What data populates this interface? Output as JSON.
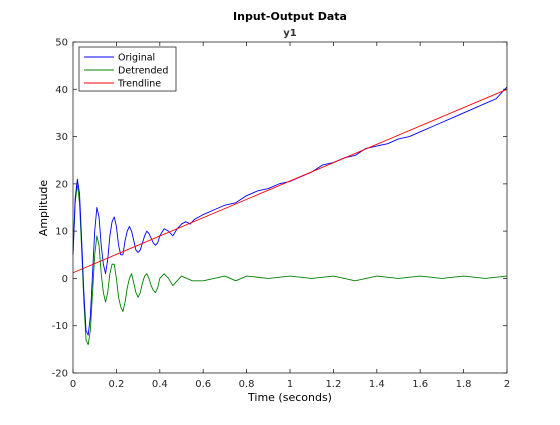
{
  "chart_data": {
    "type": "line",
    "title": "Input-Output Data",
    "subtitle": "y1",
    "xlabel": "Time (seconds)",
    "ylabel": "Amplitude",
    "xlim": [
      0,
      2
    ],
    "ylim": [
      -20,
      50
    ],
    "xticks": [
      0,
      0.2,
      0.4,
      0.6,
      0.8,
      1,
      1.2,
      1.4,
      1.6,
      1.8,
      2
    ],
    "xtick_labels": [
      "0",
      "0.2",
      "0.4",
      "0.6",
      "0.8",
      "1",
      "1.2",
      "1.4",
      "1.6",
      "1.8",
      "2"
    ],
    "yticks": [
      -20,
      -10,
      0,
      10,
      20,
      30,
      40,
      50
    ],
    "ytick_labels": [
      "-20",
      "-10",
      "0",
      "10",
      "20",
      "30",
      "40",
      "50"
    ],
    "grid": false,
    "legend_position": "top-left",
    "series": [
      {
        "name": "Original",
        "color": "#0000ff",
        "x": [
          0,
          0.01,
          0.02,
          0.03,
          0.04,
          0.05,
          0.06,
          0.07,
          0.08,
          0.09,
          0.1,
          0.11,
          0.12,
          0.13,
          0.14,
          0.15,
          0.16,
          0.17,
          0.18,
          0.19,
          0.2,
          0.21,
          0.22,
          0.23,
          0.24,
          0.25,
          0.26,
          0.27,
          0.28,
          0.29,
          0.3,
          0.31,
          0.32,
          0.33,
          0.34,
          0.35,
          0.36,
          0.37,
          0.38,
          0.39,
          0.4,
          0.42,
          0.44,
          0.46,
          0.48,
          0.5,
          0.52,
          0.54,
          0.56,
          0.58,
          0.6,
          0.65,
          0.7,
          0.75,
          0.8,
          0.85,
          0.9,
          0.95,
          1.0,
          1.05,
          1.1,
          1.15,
          1.2,
          1.25,
          1.3,
          1.35,
          1.4,
          1.45,
          1.5,
          1.55,
          1.6,
          1.65,
          1.7,
          1.75,
          1.8,
          1.85,
          1.9,
          1.95,
          2.0
        ],
        "y": [
          5,
          17,
          21,
          18,
          8,
          -3,
          -11,
          -12,
          -8,
          1,
          10,
          15,
          13,
          7,
          3,
          1,
          4,
          9,
          12,
          13,
          11,
          7,
          5,
          5,
          8,
          10,
          11,
          10,
          8,
          6,
          5.5,
          6,
          7.5,
          9,
          10,
          9.5,
          8.5,
          7.5,
          7,
          7.5,
          9,
          10.5,
          10,
          9,
          10.5,
          11.5,
          12,
          11.5,
          12.5,
          13,
          13.5,
          14.5,
          15.5,
          16,
          17.5,
          18.5,
          19,
          20,
          20.5,
          21.5,
          22.5,
          24,
          24.5,
          25.5,
          26,
          27.5,
          28,
          28.5,
          29.5,
          30,
          31,
          32,
          33,
          34,
          35,
          36,
          37,
          38,
          40.5
        ]
      },
      {
        "name": "Detrended",
        "color": "#008000",
        "x": [
          0,
          0.01,
          0.02,
          0.03,
          0.04,
          0.05,
          0.06,
          0.07,
          0.08,
          0.09,
          0.1,
          0.11,
          0.12,
          0.13,
          0.14,
          0.15,
          0.16,
          0.17,
          0.18,
          0.19,
          0.2,
          0.21,
          0.22,
          0.23,
          0.24,
          0.25,
          0.26,
          0.27,
          0.28,
          0.29,
          0.3,
          0.31,
          0.32,
          0.33,
          0.34,
          0.35,
          0.36,
          0.37,
          0.38,
          0.39,
          0.4,
          0.42,
          0.44,
          0.46,
          0.48,
          0.5,
          0.55,
          0.6,
          0.65,
          0.7,
          0.75,
          0.8,
          0.9,
          1.0,
          1.1,
          1.2,
          1.3,
          1.4,
          1.5,
          1.6,
          1.7,
          1.8,
          1.9,
          2.0
        ],
        "y": [
          5,
          16,
          20,
          16,
          6,
          -5,
          -13,
          -14,
          -11,
          -3,
          5,
          9,
          7,
          1,
          -3,
          -5,
          -3,
          1,
          3,
          3,
          0,
          -4,
          -6,
          -7,
          -5,
          -2,
          0,
          1,
          -1,
          -3,
          -4,
          -3,
          -1,
          0.5,
          1,
          0,
          -1.5,
          -2.5,
          -3,
          -2,
          0,
          1,
          0,
          -1.5,
          -0.5,
          0.5,
          -0.5,
          -0.5,
          0,
          0.5,
          -0.5,
          0.5,
          0,
          0.5,
          0,
          0.5,
          -0.5,
          0.5,
          0,
          0.5,
          0,
          0.5,
          0,
          0.5
        ]
      },
      {
        "name": "Trendline",
        "color": "#ff0000",
        "x": [
          0,
          2
        ],
        "y": [
          1.2,
          40
        ]
      }
    ]
  }
}
